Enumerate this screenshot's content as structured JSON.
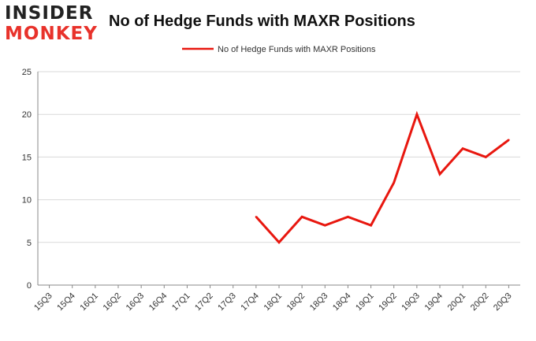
{
  "brand": {
    "line1": "INSIDER",
    "line2": "MONKEY"
  },
  "colors": {
    "series": "#e8170f",
    "grid": "#d9d9d9",
    "axis": "#888888",
    "logo_dark": "#222222",
    "logo_red": "#e8322b"
  },
  "chart_data": {
    "type": "line",
    "title": "No of Hedge Funds with MAXR Positions",
    "xlabel": "",
    "ylabel": "",
    "ylim": [
      0,
      25
    ],
    "yticks": [
      0,
      5,
      10,
      15,
      20,
      25
    ],
    "grid": true,
    "legend_position": "top-center",
    "categories": [
      "15Q3",
      "15Q4",
      "16Q1",
      "16Q2",
      "16Q3",
      "16Q4",
      "17Q1",
      "17Q2",
      "17Q3",
      "17Q4",
      "18Q1",
      "18Q2",
      "18Q3",
      "18Q4",
      "19Q1",
      "19Q2",
      "19Q3",
      "19Q4",
      "20Q1",
      "20Q2",
      "20Q3"
    ],
    "series": [
      {
        "name": "No of Hedge Funds with MAXR Positions",
        "values": [
          null,
          null,
          null,
          null,
          null,
          null,
          null,
          null,
          null,
          8,
          5,
          8,
          7,
          8,
          7,
          12,
          20,
          13,
          16,
          15,
          17
        ]
      }
    ]
  }
}
